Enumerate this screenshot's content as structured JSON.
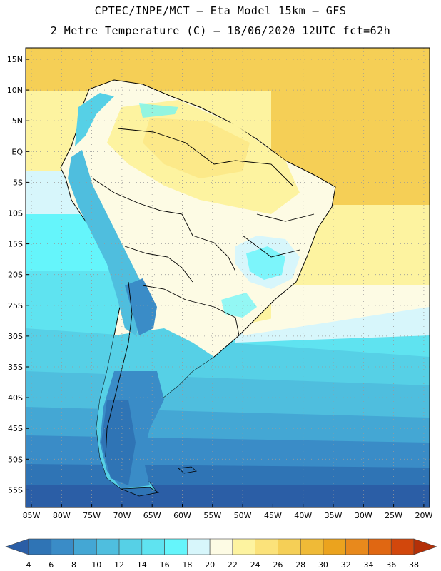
{
  "header": {
    "line1": "CPTEC/INPE/MCT –  Eta Model 15km – GFS",
    "line2": "2 Metre Temperature (C) – 18/06/2020 12UTC fct=62h"
  },
  "map": {
    "lat_labels": [
      "15N",
      "10N",
      "5N",
      "EQ",
      "5S",
      "10S",
      "15S",
      "20S",
      "25S",
      "30S",
      "35S",
      "40S",
      "45S",
      "50S",
      "55S"
    ],
    "lon_labels": [
      "85W",
      "80W",
      "75W",
      "70W",
      "65W",
      "60W",
      "55W",
      "50W",
      "45W",
      "40W",
      "35W",
      "30W",
      "25W",
      "20W"
    ],
    "grid": "dotted"
  },
  "colorbar": {
    "ticks": [
      "4",
      "6",
      "8",
      "10",
      "12",
      "14",
      "16",
      "18",
      "20",
      "22",
      "24",
      "26",
      "28",
      "30",
      "32",
      "34",
      "36",
      "38"
    ],
    "colors": [
      "#2b5ea6",
      "#2f74b5",
      "#3a8cc7",
      "#44a7d4",
      "#4fbede",
      "#56d0e6",
      "#5fe3f0",
      "#65f5fb",
      "#d7f6fb",
      "#fdfbe4",
      "#fdf3a0",
      "#fbe27a",
      "#f5cf56",
      "#efba37",
      "#eba31e",
      "#e8891c",
      "#e06712",
      "#d2470c",
      "#b43008"
    ]
  }
}
